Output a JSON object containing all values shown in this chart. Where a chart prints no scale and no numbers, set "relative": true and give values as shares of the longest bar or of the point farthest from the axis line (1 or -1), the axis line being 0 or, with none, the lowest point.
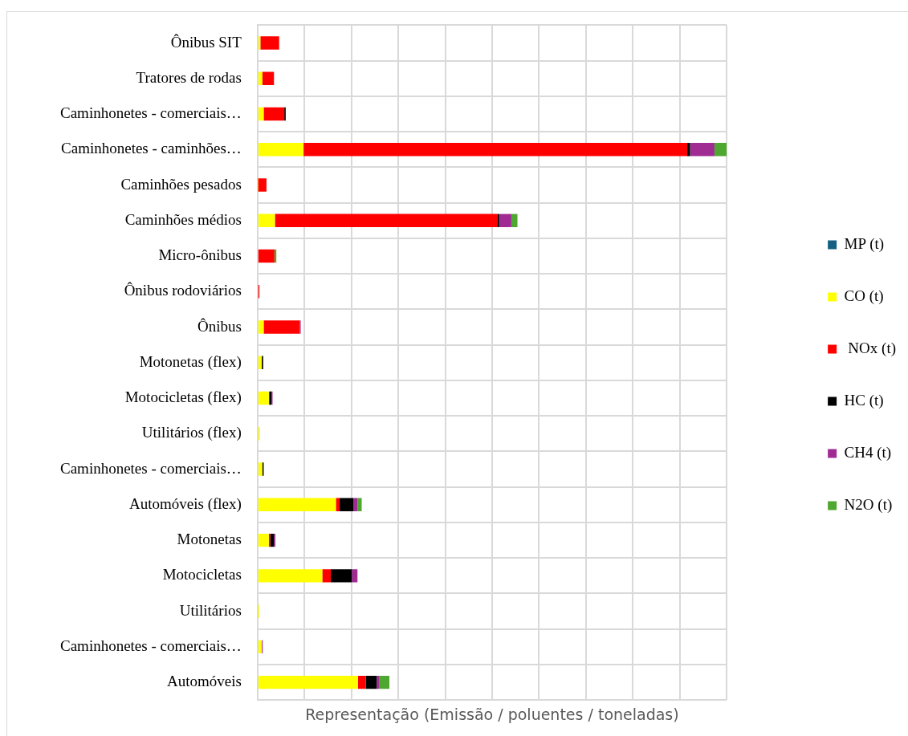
{
  "chart_data": {
    "type": "bar",
    "orientation": "horizontal",
    "stacked": true,
    "relative": true,
    "grid": true,
    "legend": "right",
    "xlabel": "Representação (Emissão / poluentes / toneladas)",
    "categories": [
      "Ônibus SIT",
      "Tratores de rodas",
      "Caminhonetes - comerciais…",
      "Caminhonetes - caminhões…",
      "Caminhões pesados",
      "Caminhões médios",
      "Micro-ônibus",
      "Ônibus rodoviários",
      "Ônibus",
      "Motonetas (flex)",
      "Motocicletas (flex)",
      "Utilitários (flex)",
      "Caminhonetes - comerciais…",
      "Automóveis (flex)",
      "Motonetas",
      "Motocicletas",
      "Utilitários",
      "Caminhonetes - comerciais…",
      "Automóveis"
    ],
    "series": [
      {
        "name": "MP (t)",
        "color": "#156082",
        "values": [
          0,
          0,
          0,
          0,
          0,
          0,
          0,
          0,
          0,
          0,
          0,
          0,
          0,
          0,
          0,
          0,
          0,
          0,
          0
        ]
      },
      {
        "name": "CO (t)",
        "color": "#ffff00",
        "values": [
          0.006,
          0.01,
          0.013,
          0.098,
          0.001,
          0.037,
          null,
          0,
          0.013,
          0.009,
          0.024,
          0.005,
          0.01,
          0.167,
          0.024,
          0.138,
          0.004,
          0.009,
          0.214
        ]
      },
      {
        "name": " NOx (t)",
        "color": "#ff0000",
        "values": [
          0.04,
          0.025,
          0.044,
          0.818,
          0.018,
          0.475,
          0.036,
          0.004,
          0.077,
          0,
          0.002,
          0,
          0,
          0.008,
          0.003,
          0.018,
          0,
          0,
          0.017
        ]
      },
      {
        "name": "HC (t)",
        "color": "#000000",
        "values": [
          0,
          0,
          0.003,
          0.006,
          0,
          0.003,
          0,
          0,
          0,
          0.003,
          0.004,
          0,
          0.003,
          0.029,
          0.008,
          0.045,
          0,
          0,
          0.023
        ]
      },
      {
        "name": "CH4 (t)",
        "color": "#a02b93",
        "values": [
          0,
          0,
          0,
          0.052,
          0,
          0.026,
          0,
          0,
          0.002,
          0,
          0.002,
          null,
          0,
          0.009,
          0.003,
          0.012,
          0,
          0.002,
          0.006
        ]
      },
      {
        "name": "N2O (t)",
        "color": "#4ea72e",
        "values": [
          null,
          0,
          0,
          0.026,
          0,
          0.013,
          0.004,
          0,
          0,
          0,
          0,
          0,
          0,
          0.009,
          0,
          0,
          0,
          0,
          0.021
        ]
      }
    ]
  }
}
